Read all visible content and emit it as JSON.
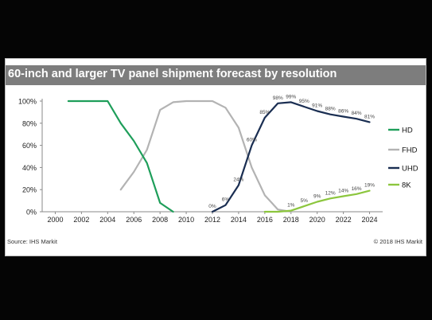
{
  "chart_data": {
    "type": "line",
    "title": "60-inch and larger TV panel shipment forecast by resolution",
    "xlim": [
      1999,
      2025
    ],
    "ylim": [
      0,
      100
    ],
    "x_ticks": [
      "2000",
      "2002",
      "2004",
      "2006",
      "2008",
      "2010",
      "2012",
      "2014",
      "2016",
      "2018",
      "2020",
      "2022",
      "2024"
    ],
    "y_ticks": [
      "0%",
      "20%",
      "40%",
      "60%",
      "80%",
      "100%"
    ],
    "legend_position": "right",
    "series": [
      {
        "name": "HD",
        "color": "#1e9e5a",
        "x": [
          2001,
          2002,
          2003,
          2004,
          2005,
          2006,
          2007,
          2008,
          2009
        ],
        "y": [
          100,
          100,
          100,
          100,
          80,
          64,
          44,
          8,
          0
        ]
      },
      {
        "name": "FHD",
        "color": "#b3b3b3",
        "x": [
          2005,
          2006,
          2007,
          2008,
          2009,
          2010,
          2011,
          2012,
          2013,
          2014,
          2015,
          2016,
          2017,
          2018
        ],
        "y": [
          20,
          36,
          56,
          92,
          99,
          100,
          100,
          100,
          94,
          76,
          40,
          15,
          2,
          0
        ]
      },
      {
        "name": "UHD",
        "color": "#1a2e52",
        "x": [
          2012,
          2013,
          2014,
          2015,
          2016,
          2017,
          2018,
          2019,
          2020,
          2021,
          2022,
          2023,
          2024
        ],
        "y": [
          0,
          6,
          24,
          60,
          85,
          98,
          99,
          95,
          91,
          88,
          86,
          84,
          81
        ],
        "labels": [
          {
            "x": 2012,
            "y": 0,
            "text": "0%"
          },
          {
            "x": 2013,
            "y": 6,
            "text": "6%"
          },
          {
            "x": 2014,
            "y": 24,
            "text": "24%"
          },
          {
            "x": 2015,
            "y": 60,
            "text": "60%"
          },
          {
            "x": 2016,
            "y": 85,
            "text": "85%"
          },
          {
            "x": 2017,
            "y": 98,
            "text": "98%"
          },
          {
            "x": 2018,
            "y": 99,
            "text": "99%"
          },
          {
            "x": 2019,
            "y": 95,
            "text": "95%"
          },
          {
            "x": 2020,
            "y": 91,
            "text": "91%"
          },
          {
            "x": 2021,
            "y": 88,
            "text": "88%"
          },
          {
            "x": 2022,
            "y": 86,
            "text": "86%"
          },
          {
            "x": 2023,
            "y": 84,
            "text": "84%"
          },
          {
            "x": 2024,
            "y": 81,
            "text": "81%"
          }
        ]
      },
      {
        "name": "8K",
        "color": "#8cc63e",
        "x": [
          2016,
          2017,
          2018,
          2019,
          2020,
          2021,
          2022,
          2023,
          2024
        ],
        "y": [
          0,
          0,
          1,
          5,
          9,
          12,
          14,
          16,
          19
        ],
        "labels": [
          {
            "x": 2018,
            "y": 1,
            "text": "1%"
          },
          {
            "x": 2019,
            "y": 5,
            "text": "5%"
          },
          {
            "x": 2020,
            "y": 9,
            "text": "9%"
          },
          {
            "x": 2021,
            "y": 12,
            "text": "12%"
          },
          {
            "x": 2022,
            "y": 14,
            "text": "14%"
          },
          {
            "x": 2023,
            "y": 16,
            "text": "16%"
          },
          {
            "x": 2024,
            "y": 19,
            "text": "19%"
          }
        ]
      }
    ]
  },
  "footer": {
    "source": "Source: IHS Markit",
    "copyright": "© 2018 IHS Markit"
  }
}
